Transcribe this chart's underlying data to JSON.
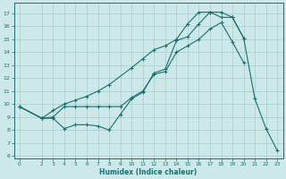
{
  "xlabel": "Humidex (Indice chaleur)",
  "xlim": [
    -0.5,
    23.5
  ],
  "ylim": [
    5.8,
    17.8
  ],
  "yticks": [
    6,
    7,
    8,
    9,
    10,
    11,
    12,
    13,
    14,
    15,
    16,
    17
  ],
  "xticks": [
    0,
    2,
    3,
    4,
    5,
    6,
    7,
    8,
    9,
    10,
    11,
    12,
    13,
    14,
    15,
    16,
    17,
    18,
    19,
    20,
    21,
    22,
    23
  ],
  "bg_color": "#cce8e8",
  "line_color": "#1a7070",
  "grid_color": "#aacccc",
  "line1_x": [
    0,
    2,
    3,
    4,
    5,
    6,
    7,
    8,
    9,
    10,
    11,
    12,
    13,
    14,
    15,
    16,
    17,
    18,
    19,
    20,
    21,
    22,
    23
  ],
  "line1_y": [
    9.8,
    8.9,
    8.9,
    8.1,
    8.4,
    8.4,
    8.3,
    8.0,
    9.2,
    10.4,
    10.9,
    12.4,
    12.7,
    14.9,
    15.2,
    16.2,
    17.1,
    17.1,
    16.7,
    15.1,
    10.4,
    8.1,
    6.4
  ],
  "line2_x": [
    0,
    2,
    3,
    4,
    5,
    6,
    7,
    8,
    10,
    11,
    12,
    13,
    14,
    15,
    16,
    17,
    18,
    19,
    20
  ],
  "line2_y": [
    9.8,
    8.9,
    9.5,
    10.0,
    10.3,
    10.6,
    11.0,
    11.5,
    12.8,
    13.5,
    14.2,
    14.5,
    15.0,
    16.2,
    17.1,
    17.1,
    16.7,
    16.7,
    15.1
  ],
  "line3_x": [
    0,
    2,
    3,
    4,
    5,
    6,
    7,
    8,
    9,
    10,
    11,
    12,
    13,
    14,
    15,
    16,
    17,
    18,
    19,
    20
  ],
  "line3_y": [
    9.8,
    8.9,
    9.0,
    9.8,
    9.8,
    9.8,
    9.8,
    9.8,
    9.8,
    10.5,
    11.0,
    12.3,
    12.5,
    14.0,
    14.5,
    15.0,
    15.8,
    16.3,
    14.8,
    13.2
  ]
}
